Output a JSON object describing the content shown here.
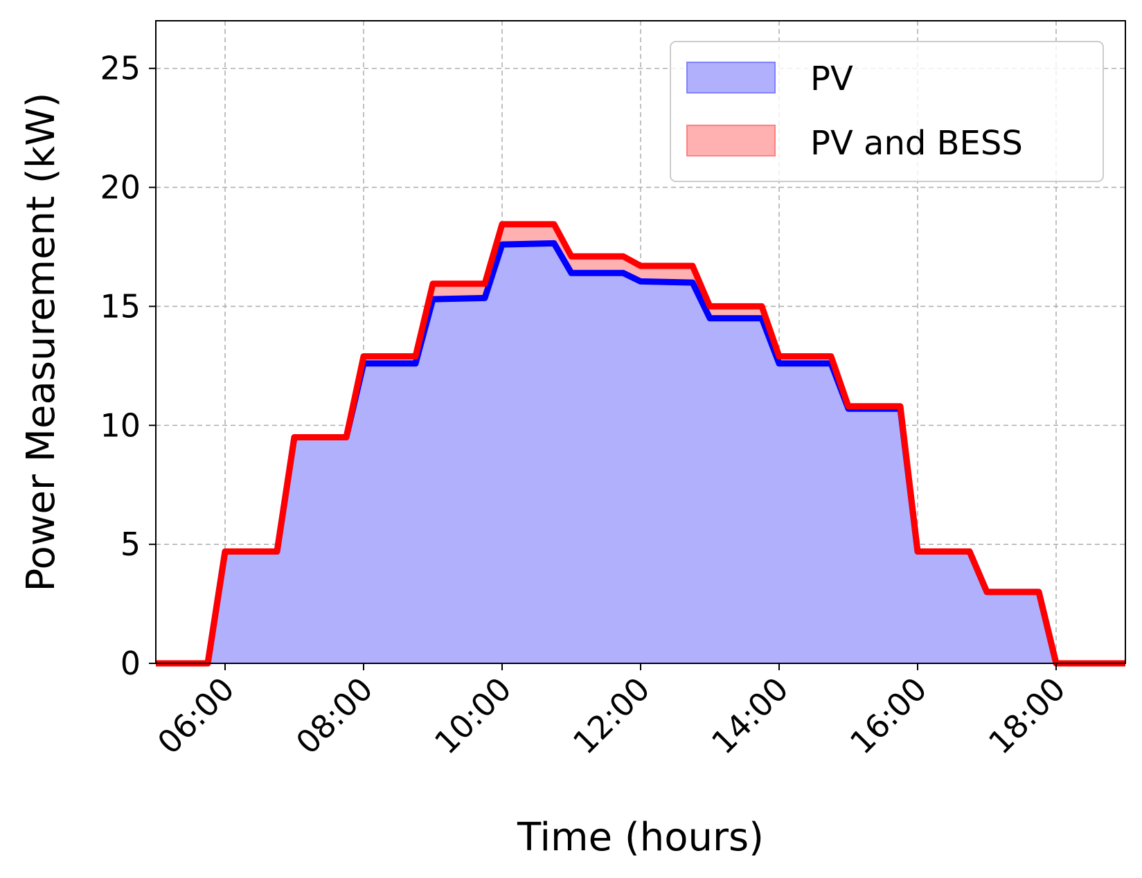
{
  "chart_data": {
    "type": "area",
    "xlabel": "Time (hours)",
    "ylabel": "Power Measurement (kW)",
    "xlim": [
      "05:00",
      "19:00"
    ],
    "ylim": [
      0,
      27
    ],
    "x_ticks": [
      "06:00",
      "08:00",
      "10:00",
      "12:00",
      "14:00",
      "16:00",
      "18:00"
    ],
    "y_ticks": [
      0,
      5,
      10,
      15,
      20,
      25
    ],
    "grid": true,
    "legend_position": "top-right",
    "x": [
      "05:00",
      "05:45",
      "06:00",
      "06:45",
      "07:00",
      "07:45",
      "08:00",
      "08:45",
      "09:00",
      "09:45",
      "10:00",
      "10:45",
      "11:00",
      "11:45",
      "12:00",
      "12:45",
      "13:00",
      "13:45",
      "14:00",
      "14:45",
      "15:00",
      "15:45",
      "16:00",
      "16:45",
      "17:00",
      "17:45",
      "18:00",
      "19:00"
    ],
    "series": [
      {
        "name": "PV",
        "fill_color": "#b0b0fc",
        "line_color": "#0000ff",
        "values": [
          0,
          0,
          4.7,
          4.7,
          9.5,
          9.5,
          12.6,
          12.6,
          15.3,
          15.35,
          17.6,
          17.65,
          16.4,
          16.4,
          16.05,
          16.0,
          14.5,
          14.5,
          12.6,
          12.6,
          10.7,
          10.7,
          4.7,
          4.7,
          3.0,
          3.0,
          0,
          0
        ]
      },
      {
        "name": "PV and BESS",
        "fill_color": "#ffb0b0",
        "line_color": "#ff0000",
        "values": [
          0,
          0,
          4.7,
          4.7,
          9.5,
          9.5,
          12.9,
          12.9,
          15.95,
          15.95,
          18.45,
          18.45,
          17.1,
          17.1,
          16.7,
          16.7,
          15.0,
          15.0,
          12.9,
          12.9,
          10.8,
          10.8,
          4.7,
          4.7,
          3.0,
          3.0,
          0,
          0
        ]
      }
    ]
  }
}
